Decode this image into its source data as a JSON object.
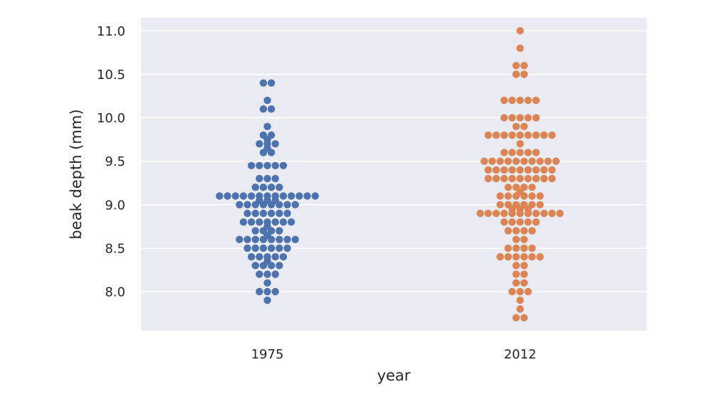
{
  "chart_data": {
    "type": "scatter",
    "subtype": "swarm",
    "title": "",
    "xlabel": "year",
    "ylabel": "beak depth (mm)",
    "categories": [
      "1975",
      "2012"
    ],
    "ylim": [
      7.55,
      11.15
    ],
    "yticks": [
      8.0,
      8.5,
      9.0,
      9.5,
      10.0,
      10.5,
      11.0
    ],
    "ytick_labels": [
      "8.0",
      "8.5",
      "9.0",
      "9.5",
      "10.0",
      "10.5",
      "11.0"
    ],
    "grid": true,
    "legend": "none",
    "background_color": "#eaeaf2",
    "grid_color": "#ffffff",
    "series": [
      {
        "category": "1975",
        "color": "#4c72b0",
        "values": [
          10.4,
          10.4,
          10.2,
          10.1,
          10.1,
          9.9,
          9.8,
          9.8,
          9.75,
          9.7,
          9.7,
          9.7,
          9.65,
          9.6,
          9.6,
          9.45,
          9.45,
          9.45,
          9.45,
          9.45,
          9.3,
          9.3,
          9.3,
          9.2,
          9.2,
          9.2,
          9.2,
          9.1,
          9.1,
          9.1,
          9.1,
          9.1,
          9.1,
          9.1,
          9.1,
          9.1,
          9.1,
          9.1,
          9.1,
          9.1,
          9.05,
          9.05,
          9.05,
          9.0,
          9.0,
          9.0,
          9.0,
          9.0,
          9.0,
          9.0,
          9.0,
          8.9,
          8.9,
          8.9,
          8.9,
          8.9,
          8.9,
          8.8,
          8.8,
          8.8,
          8.8,
          8.8,
          8.8,
          8.8,
          8.75,
          8.7,
          8.7,
          8.7,
          8.7,
          8.65,
          8.6,
          8.6,
          8.6,
          8.6,
          8.6,
          8.6,
          8.6,
          8.6,
          8.5,
          8.5,
          8.5,
          8.5,
          8.5,
          8.5,
          8.4,
          8.4,
          8.4,
          8.4,
          8.4,
          8.35,
          8.3,
          8.3,
          8.3,
          8.3,
          8.2,
          8.2,
          8.2,
          8.1,
          8.0,
          8.0,
          8.0,
          7.9
        ]
      },
      {
        "category": "2012",
        "color": "#dd8452",
        "values": [
          11.0,
          10.8,
          10.6,
          10.6,
          10.5,
          10.5,
          10.2,
          10.2,
          10.2,
          10.2,
          10.2,
          10.0,
          10.0,
          10.0,
          10.0,
          10.0,
          9.9,
          9.9,
          9.8,
          9.8,
          9.8,
          9.8,
          9.8,
          9.8,
          9.8,
          9.8,
          9.8,
          9.7,
          9.6,
          9.6,
          9.6,
          9.6,
          9.6,
          9.5,
          9.5,
          9.5,
          9.5,
          9.5,
          9.5,
          9.5,
          9.5,
          9.5,
          9.5,
          9.4,
          9.4,
          9.4,
          9.4,
          9.4,
          9.4,
          9.4,
          9.4,
          9.4,
          9.3,
          9.3,
          9.3,
          9.3,
          9.3,
          9.3,
          9.3,
          9.3,
          9.3,
          9.2,
          9.2,
          9.2,
          9.2,
          9.15,
          9.1,
          9.1,
          9.1,
          9.1,
          9.1,
          9.1,
          9.0,
          9.0,
          9.0,
          9.0,
          9.0,
          9.0,
          8.95,
          8.95,
          8.95,
          8.9,
          8.9,
          8.9,
          8.9,
          8.9,
          8.9,
          8.9,
          8.9,
          8.9,
          8.9,
          8.9,
          8.8,
          8.8,
          8.8,
          8.8,
          8.8,
          8.7,
          8.7,
          8.7,
          8.7,
          8.6,
          8.6,
          8.5,
          8.5,
          8.5,
          8.5,
          8.4,
          8.4,
          8.4,
          8.4,
          8.4,
          8.4,
          8.3,
          8.3,
          8.2,
          8.2,
          8.1,
          8.1,
          8.0,
          8.0,
          8.0,
          7.9,
          7.8,
          7.7,
          7.7
        ]
      }
    ]
  }
}
